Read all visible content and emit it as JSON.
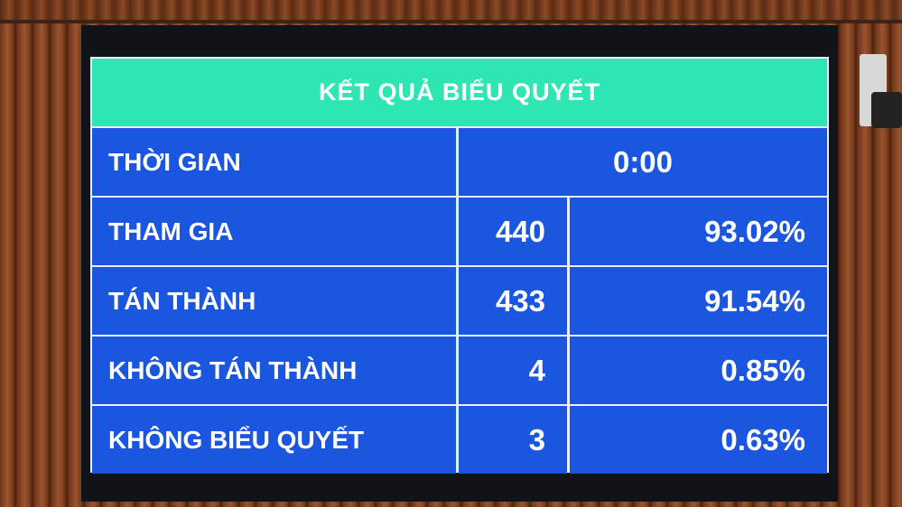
{
  "title": "KẾT QUẢ BIỂU QUYẾT",
  "time": {
    "label": "THỜI GIAN",
    "value": "0:00"
  },
  "rows": [
    {
      "label": "THAM GIA",
      "count": "440",
      "percent": "93.02%"
    },
    {
      "label": "TÁN THÀNH",
      "count": "433",
      "percent": "91.54%"
    },
    {
      "label": "KHÔNG TÁN THÀNH",
      "count": "4",
      "percent": "0.85%"
    },
    {
      "label": "KHÔNG BIỂU QUYẾT",
      "count": "3",
      "percent": "0.63%"
    }
  ],
  "colors": {
    "header": "#2ee6b4",
    "cell": "#1a56e0",
    "text": "#ffffff"
  }
}
